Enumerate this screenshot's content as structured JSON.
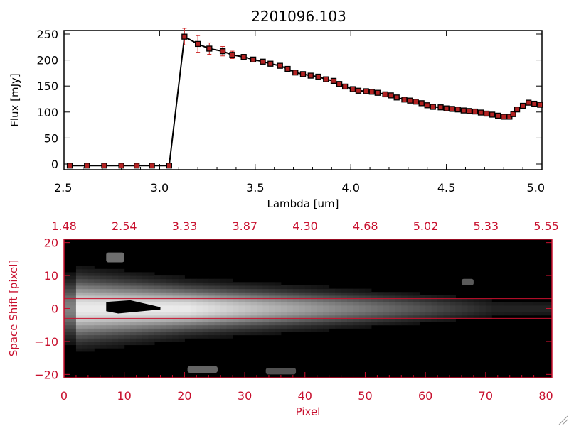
{
  "colors": {
    "axis_black": "#000000",
    "axis_red": "#c8102e",
    "marker": "#b22222",
    "errorbar": "#cc2222",
    "image_bg": "#000000",
    "extraction_lines": "#c8102e"
  },
  "chart_data": [
    {
      "type": "line",
      "title": "2201096.103",
      "xlabel": "Lambda [um]",
      "ylabel": "Flux [mJy]",
      "xlim": [
        2.5,
        5.0
      ],
      "ylim": [
        0,
        250
      ],
      "x_ticks": [
        "2.5",
        "3.0",
        "3.5",
        "4.0",
        "4.5",
        "5.0"
      ],
      "y_ticks": [
        "0",
        "50",
        "100",
        "150",
        "200",
        "250"
      ],
      "grid": false,
      "series": [
        {
          "x": [
            2.53,
            2.62,
            2.71,
            2.8,
            2.88,
            2.96,
            3.05,
            3.13,
            3.2,
            3.26,
            3.33,
            3.38,
            3.44,
            3.49,
            3.54,
            3.58,
            3.63,
            3.67,
            3.71,
            3.75,
            3.79,
            3.83,
            3.87,
            3.91,
            3.94,
            3.97,
            4.01,
            4.04,
            4.08,
            4.11,
            4.14,
            4.18,
            4.21,
            4.24,
            4.28,
            4.31,
            4.34,
            4.37,
            4.4,
            4.43,
            4.47,
            4.5,
            4.53,
            4.56,
            4.59,
            4.62,
            4.65,
            4.68,
            4.71,
            4.74,
            4.77,
            4.8,
            4.83,
            4.85,
            4.87,
            4.9,
            4.93,
            4.96,
            4.99
          ],
          "y": [
            -3,
            -3,
            -3,
            -3,
            -3,
            -3,
            -3,
            245,
            231,
            222,
            217,
            210,
            206,
            201,
            197,
            193,
            189,
            183,
            176,
            173,
            170,
            168,
            163,
            160,
            154,
            149,
            144,
            141,
            140,
            139,
            137,
            134,
            132,
            128,
            124,
            122,
            120,
            117,
            113,
            110,
            109,
            107,
            106,
            105,
            103,
            102,
            101,
            99,
            97,
            95,
            93,
            91,
            91,
            96,
            105,
            112,
            118,
            116,
            114
          ],
          "yerr": [
            0,
            0,
            0,
            0,
            0,
            0,
            0,
            16,
            16,
            11,
            9,
            7,
            5,
            4,
            4,
            3,
            3,
            3,
            3,
            3,
            3,
            3,
            3,
            3,
            3,
            3,
            3,
            3,
            3,
            3,
            3,
            3,
            3,
            3,
            3,
            3,
            3,
            3,
            3,
            3,
            3,
            3,
            3,
            3,
            3,
            3,
            3,
            3,
            3,
            3,
            3,
            3,
            3,
            3,
            3,
            3,
            3,
            3,
            3
          ]
        }
      ]
    },
    {
      "type": "heatmap",
      "xlabel": "Pixel",
      "ylabel": "Space Shift [pixel]",
      "xlim": [
        0,
        81
      ],
      "ylim": [
        -21,
        21
      ],
      "x_ticks": [
        "0",
        "10",
        "20",
        "30",
        "40",
        "50",
        "60",
        "70",
        "80"
      ],
      "y_ticks": [
        "20",
        "10",
        "0",
        "−10",
        "−20"
      ],
      "top_ticks": [
        "1.48",
        "2.54",
        "3.33",
        "3.87",
        "4.30",
        "4.68",
        "5.02",
        "5.33",
        "5.55"
      ],
      "extraction_window": [
        -3,
        3
      ],
      "trace_center": 0,
      "saturated_region": {
        "x": [
          7,
          16
        ],
        "y": [
          -1.5,
          2
        ]
      },
      "blobs": [
        {
          "x": 8.5,
          "y": 15.5,
          "w": 3,
          "h": 3,
          "level": 0.55
        },
        {
          "x": 23,
          "y": -18.5,
          "w": 5,
          "h": 2,
          "level": 0.5
        },
        {
          "x": 36,
          "y": -19,
          "w": 5,
          "h": 2,
          "level": 0.4
        },
        {
          "x": 67,
          "y": 8,
          "w": 2,
          "h": 2,
          "level": 0.45
        }
      ]
    }
  ]
}
